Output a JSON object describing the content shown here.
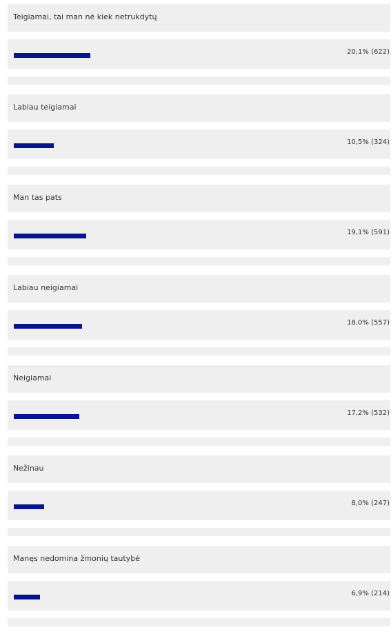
{
  "chart_data": {
    "type": "bar",
    "categories": [
      "Teigiamai, tai man nė kiek netrukdytų",
      "Labiau teigiamai",
      "Man tas pats",
      "Labiau neigiamai",
      "Neigiamai",
      "Nežinau",
      "Manęs nedomina žmonių tautybė"
    ],
    "values": [
      20.1,
      10.5,
      19.1,
      18.0,
      17.2,
      8.0,
      6.9
    ],
    "counts": [
      622,
      324,
      591,
      557,
      532,
      247,
      214
    ],
    "labels": [
      "20,1% (622)",
      "10,5% (324)",
      "19,1% (591)",
      "18,0% (557)",
      "17,2% (532)",
      "8,0% (247)",
      "6,9% (214)"
    ],
    "bar_color": "#08148a"
  }
}
